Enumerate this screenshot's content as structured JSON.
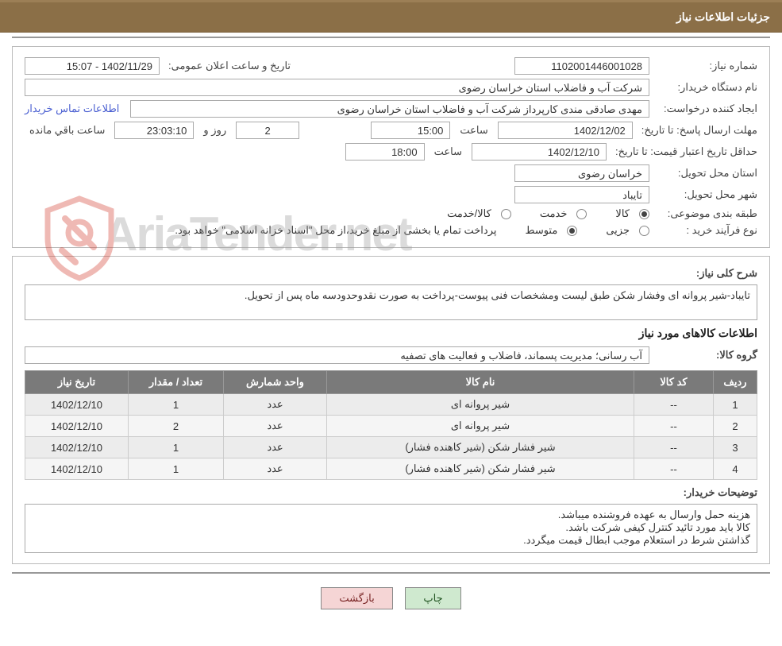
{
  "header": {
    "title": "جزئیات اطلاعات نیاز"
  },
  "panel1": {
    "need_no_label": "شماره نیاز:",
    "need_no": "1102001446001028",
    "announce_label": "تاریخ و ساعت اعلان عمومی:",
    "announce_value": "1402/11/29 - 15:07",
    "buyer_label": "نام دستگاه خریدار:",
    "buyer_value": "شرکت آب و فاضلاب استان خراسان رضوی",
    "requester_label": "ایجاد کننده درخواست:",
    "requester_value": "مهدی صادقی مندی کارپرداز شرکت آب و فاضلاب استان خراسان رضوی",
    "contact_link": "اطلاعات تماس خریدار",
    "reply_deadline_label": "مهلت ارسال پاسخ: تا تاریخ:",
    "reply_date": "1402/12/02",
    "time_label": "ساعت",
    "reply_time": "15:00",
    "remain_days": "2",
    "days_and": "روز و",
    "remain_time": "23:03:10",
    "remain_suffix": "ساعت باقي مانده",
    "price_valid_label": "حداقل تاریخ اعتبار قیمت: تا تاریخ:",
    "price_date": "1402/12/10",
    "price_time": "18:00",
    "province_label": "استان محل تحویل:",
    "province_value": "خراسان رضوی",
    "city_label": "شهر محل تحویل:",
    "city_value": "تایباد",
    "category_label": "طبقه بندی موضوعی:",
    "cat_goods": "کالا",
    "cat_service": "خدمت",
    "cat_both": "کالا/خدمت",
    "purchase_type_label": "نوع فرآیند خرید :",
    "pt_minor": "جزیی",
    "pt_medium": "متوسط",
    "purchase_note": "پرداخت تمام یا بخشی از مبلغ خرید،از محل \"اسناد خزانه اسلامی\" خواهد بود."
  },
  "panel2": {
    "desc_label": "شرح کلی نیاز:",
    "desc_value": "تایباد-شیر پروانه ای وفشار شکن طبق لیست ومشخصات فنی پیوست-پرداخت به صورت نقدوحدودسه ماه پس از تحویل.",
    "goods_info_title": "اطلاعات کالاهای مورد نیاز",
    "group_label": "گروه کالا:",
    "group_value": "آب رسانی؛ مدیریت پسماند، فاضلاب و فعالیت های تصفیه",
    "table": {
      "columns": [
        "ردیف",
        "کد کالا",
        "نام کالا",
        "واحد شمارش",
        "تعداد / مقدار",
        "تاریخ نیاز"
      ],
      "rows": [
        [
          "1",
          "--",
          "شیر پروانه ای",
          "عدد",
          "1",
          "1402/12/10"
        ],
        [
          "2",
          "--",
          "شیر پروانه ای",
          "عدد",
          "2",
          "1402/12/10"
        ],
        [
          "3",
          "--",
          "شیر فشار شکن (شیر کاهنده فشار)",
          "عدد",
          "1",
          "1402/12/10"
        ],
        [
          "4",
          "--",
          "شیر فشار شکن (شیر کاهنده فشار)",
          "عدد",
          "1",
          "1402/12/10"
        ]
      ]
    },
    "buyer_notes_label": "توضیحات خریدار:",
    "buyer_notes_value": "هزینه حمل وارسال به عهده فروشنده میباشد.\nکالا باید مورد تائید کنترل کیفی شرکت باشد.\nگذاشتن شرط در استعلام موجب ابطال قیمت میگردد."
  },
  "buttons": {
    "print": "چاپ",
    "back": "بازگشت"
  },
  "watermark": {
    "text": "AriaTender.net"
  },
  "style": {
    "header_bg": "#8b6f47",
    "header_fg": "#ffffff",
    "link_color": "#4a5fd1",
    "table_header_bg": "#7a7a7a",
    "btn_print_bg": "#cfe9cf",
    "btn_back_bg": "#f5d5d5",
    "watermark_color": "#999999",
    "shield_stroke": "#d43a2a"
  }
}
